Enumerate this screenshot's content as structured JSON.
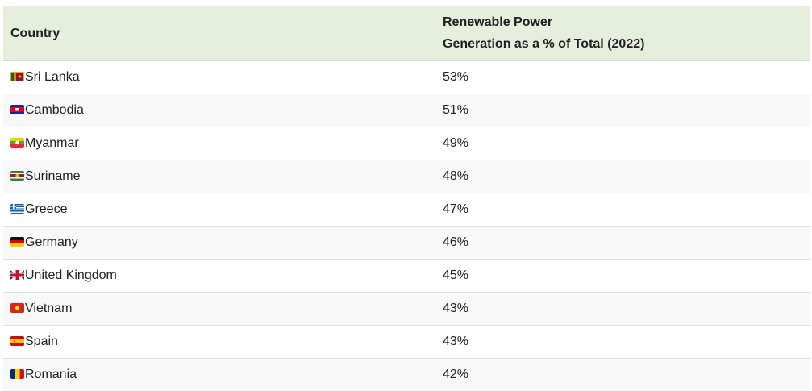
{
  "table": {
    "header": {
      "country": "Country",
      "value_line1": "Renewable Power",
      "value_line2": "Generation as a % of Total (2022)"
    },
    "rows": [
      {
        "country": "Sri Lanka",
        "flag": "lk",
        "value": "53%"
      },
      {
        "country": "Cambodia",
        "flag": "kh",
        "value": "51%"
      },
      {
        "country": "Myanmar",
        "flag": "mm",
        "value": "49%"
      },
      {
        "country": "Suriname",
        "flag": "sr",
        "value": "48%"
      },
      {
        "country": "Greece",
        "flag": "gr",
        "value": "47%"
      },
      {
        "country": "Germany",
        "flag": "de",
        "value": "46%"
      },
      {
        "country": "United Kingdom",
        "flag": "gb",
        "value": "45%"
      },
      {
        "country": "Vietnam",
        "flag": "vn",
        "value": "43%"
      },
      {
        "country": "Spain",
        "flag": "es",
        "value": "43%"
      },
      {
        "country": "Romania",
        "flag": "ro",
        "value": "42%"
      }
    ]
  },
  "chart_data": {
    "type": "table",
    "title": "Renewable Power Generation as a % of Total (2022)",
    "columns": [
      "Country",
      "Renewable Power Generation as a % of Total (2022)"
    ],
    "categories": [
      "Sri Lanka",
      "Cambodia",
      "Myanmar",
      "Suriname",
      "Greece",
      "Germany",
      "United Kingdom",
      "Vietnam",
      "Spain",
      "Romania"
    ],
    "values": [
      53,
      51,
      49,
      48,
      47,
      46,
      45,
      43,
      43,
      42
    ],
    "unit": "%"
  },
  "colors": {
    "header_bg": "#e6efde",
    "alt_row_bg": "#f8f8f8",
    "row_border": "#e0e0e0",
    "text": "#202124"
  }
}
